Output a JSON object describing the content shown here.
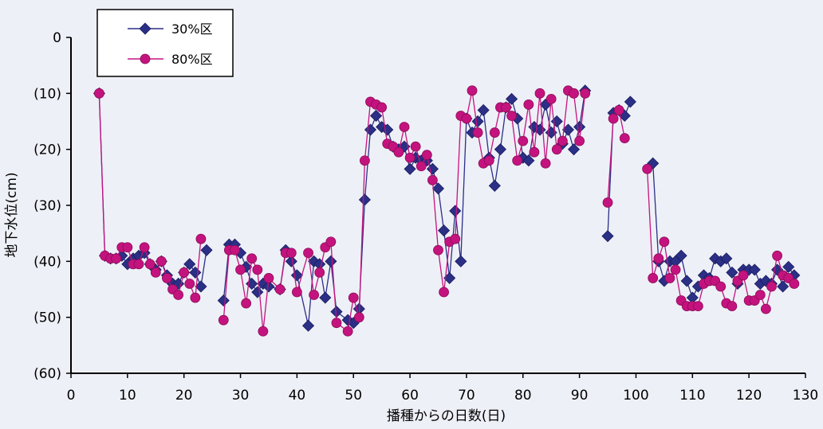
{
  "chart_data": {
    "type": "line",
    "title": "",
    "xlabel": "播種からの日数(日)",
    "ylabel": "地下水位(cm)",
    "xlim": [
      0,
      130
    ],
    "ylim": [
      -60,
      0
    ],
    "x_ticks": [
      0,
      10,
      20,
      30,
      40,
      50,
      60,
      70,
      80,
      90,
      100,
      110,
      120,
      130
    ],
    "y_ticks": [
      0,
      -10,
      -20,
      -30,
      -40,
      -50,
      -60
    ],
    "x_tick_labels": [
      "0",
      "10",
      "20",
      "30",
      "40",
      "50",
      "60",
      "70",
      "80",
      "90",
      "100",
      "110",
      "120",
      "130"
    ],
    "y_tick_labels": [
      "0",
      "(10)",
      "(20)",
      "(30)",
      "(40)",
      "(50)",
      "(60)"
    ],
    "grid": false,
    "legend_position": "top-left",
    "series": [
      {
        "name": "30%区",
        "color": "#2b2f86",
        "marker": "diamond",
        "points": [
          [
            5,
            -10
          ],
          [
            6,
            -39
          ],
          [
            7,
            -39.5
          ],
          [
            8,
            -39.5
          ],
          [
            9,
            -39
          ],
          [
            10,
            -40.5
          ],
          [
            11,
            -39.5
          ],
          [
            12,
            -39
          ],
          [
            13,
            -38.5
          ],
          [
            14,
            -40.5
          ],
          [
            15,
            -41.5
          ],
          [
            16,
            -40
          ],
          [
            17,
            -42.5
          ],
          [
            18,
            -44
          ],
          [
            19,
            -44
          ],
          [
            20,
            -42
          ],
          [
            21,
            -40.5
          ],
          [
            22,
            -42
          ],
          [
            23,
            -44.5
          ],
          [
            24,
            -38
          ],
          [
            27,
            -47
          ],
          [
            28,
            -37
          ],
          [
            29,
            -37
          ],
          [
            30,
            -38.5
          ],
          [
            31,
            -41
          ],
          [
            32,
            -44
          ],
          [
            33,
            -45.5
          ],
          [
            34,
            -44
          ],
          [
            35,
            -44.5
          ],
          [
            37,
            -45
          ],
          [
            38,
            -38
          ],
          [
            39,
            -40
          ],
          [
            40,
            -42.5
          ],
          [
            42,
            -51.5
          ],
          [
            43,
            -40
          ],
          [
            44,
            -40.5
          ],
          [
            45,
            -46.5
          ],
          [
            46,
            -40
          ],
          [
            47,
            -49
          ],
          [
            49,
            -50.5
          ],
          [
            50,
            -51
          ],
          [
            51,
            -48.5
          ],
          [
            52,
            -29
          ],
          [
            53,
            -16.5
          ],
          [
            54,
            -14
          ],
          [
            55,
            -16
          ],
          [
            56,
            -16.5
          ],
          [
            57,
            -19.5
          ],
          [
            58,
            -20
          ],
          [
            59,
            -19.5
          ],
          [
            60,
            -23.5
          ],
          [
            61,
            -21.5
          ],
          [
            62,
            -22
          ],
          [
            63,
            -22
          ],
          [
            64,
            -23.5
          ],
          [
            65,
            -27
          ],
          [
            66,
            -34.5
          ],
          [
            67,
            -43
          ],
          [
            68,
            -31
          ],
          [
            69,
            -40
          ],
          [
            70,
            -14.5
          ],
          [
            71,
            -17
          ],
          [
            72,
            -15
          ],
          [
            73,
            -13
          ],
          [
            74,
            -21.5
          ],
          [
            75,
            -26.5
          ],
          [
            76,
            -20
          ],
          [
            77,
            -12.5
          ],
          [
            78,
            -11
          ],
          [
            79,
            -14.5
          ],
          [
            80,
            -21.5
          ],
          [
            81,
            -22
          ],
          [
            82,
            -16
          ],
          [
            83,
            -16.5
          ],
          [
            84,
            -12
          ],
          [
            85,
            -17
          ],
          [
            86,
            -15
          ],
          [
            87,
            -19
          ],
          [
            88,
            -16.5
          ],
          [
            89,
            -20
          ],
          [
            90,
            -16
          ],
          [
            91,
            -9.5
          ],
          [
            95,
            -35.5
          ],
          [
            96,
            -13.5
          ],
          [
            97,
            -13
          ],
          [
            98,
            -14
          ],
          [
            99,
            -11.5
          ],
          [
            103,
            -22.5
          ],
          [
            104,
            -40
          ],
          [
            105,
            -43.5
          ],
          [
            106,
            -40
          ],
          [
            107,
            -40
          ],
          [
            108,
            -39
          ],
          [
            109,
            -43.5
          ],
          [
            110,
            -46.5
          ],
          [
            111,
            -44.5
          ],
          [
            112,
            -42.5
          ],
          [
            113,
            -43
          ],
          [
            114,
            -39.5
          ],
          [
            115,
            -40
          ],
          [
            116,
            -39.5
          ],
          [
            117,
            -42
          ],
          [
            118,
            -44
          ],
          [
            119,
            -41.5
          ],
          [
            120,
            -41.5
          ],
          [
            121,
            -41.5
          ],
          [
            122,
            -44
          ],
          [
            123,
            -43.5
          ],
          [
            124,
            -44
          ],
          [
            125,
            -41.5
          ],
          [
            126,
            -44.5
          ],
          [
            127,
            -41
          ],
          [
            128,
            -42.5
          ]
        ]
      },
      {
        "name": "80%区",
        "color": "#c4137e",
        "marker": "circle",
        "points": [
          [
            5,
            -10
          ],
          [
            6,
            -39
          ],
          [
            7,
            -39.5
          ],
          [
            8,
            -39.5
          ],
          [
            9,
            -37.5
          ],
          [
            10,
            -37.5
          ],
          [
            11,
            -40.5
          ],
          [
            12,
            -40.5
          ],
          [
            13,
            -37.5
          ],
          [
            14,
            -40.5
          ],
          [
            15,
            -42
          ],
          [
            16,
            -40
          ],
          [
            17,
            -43
          ],
          [
            18,
            -45
          ],
          [
            19,
            -46
          ],
          [
            20,
            -42
          ],
          [
            21,
            -44
          ],
          [
            22,
            -46.5
          ],
          [
            23,
            -36
          ],
          [
            27,
            -50.5
          ],
          [
            28,
            -38
          ],
          [
            29,
            -38
          ],
          [
            30,
            -41.5
          ],
          [
            31,
            -47.5
          ],
          [
            32,
            -39.5
          ],
          [
            33,
            -41.5
          ],
          [
            34,
            -52.5
          ],
          [
            35,
            -43
          ],
          [
            37,
            -45
          ],
          [
            38,
            -38.5
          ],
          [
            39,
            -38.5
          ],
          [
            40,
            -45.5
          ],
          [
            42,
            -38.5
          ],
          [
            43,
            -46
          ],
          [
            44,
            -42
          ],
          [
            45,
            -37.5
          ],
          [
            46,
            -36.5
          ],
          [
            47,
            -51
          ],
          [
            49,
            -52.5
          ],
          [
            50,
            -46.5
          ],
          [
            51,
            -50
          ],
          [
            52,
            -22
          ],
          [
            53,
            -11.5
          ],
          [
            54,
            -12
          ],
          [
            55,
            -12.5
          ],
          [
            56,
            -19
          ],
          [
            57,
            -19.5
          ],
          [
            58,
            -20.5
          ],
          [
            59,
            -16
          ],
          [
            60,
            -21.5
          ],
          [
            61,
            -19.5
          ],
          [
            62,
            -23
          ],
          [
            63,
            -21
          ],
          [
            64,
            -25.5
          ],
          [
            65,
            -38
          ],
          [
            66,
            -45.5
          ],
          [
            67,
            -36.5
          ],
          [
            68,
            -36
          ],
          [
            69,
            -14
          ],
          [
            70,
            -14.5
          ],
          [
            71,
            -9.5
          ],
          [
            72,
            -17
          ],
          [
            73,
            -22.5
          ],
          [
            74,
            -22
          ],
          [
            75,
            -17
          ],
          [
            76,
            -12.5
          ],
          [
            77,
            -12.5
          ],
          [
            78,
            -14
          ],
          [
            79,
            -22
          ],
          [
            80,
            -18.5
          ],
          [
            81,
            -12
          ],
          [
            82,
            -20.5
          ],
          [
            83,
            -10
          ],
          [
            84,
            -22.5
          ],
          [
            85,
            -11
          ],
          [
            86,
            -20
          ],
          [
            87,
            -18.5
          ],
          [
            88,
            -9.5
          ],
          [
            89,
            -10
          ],
          [
            90,
            -18.5
          ],
          [
            91,
            -10
          ],
          [
            95,
            -29.5
          ],
          [
            96,
            -14.5
          ],
          [
            97,
            -13
          ],
          [
            98,
            -18
          ],
          [
            102,
            -23.5
          ],
          [
            103,
            -43
          ],
          [
            104,
            -39.5
          ],
          [
            105,
            -36.5
          ],
          [
            106,
            -43
          ],
          [
            107,
            -41.5
          ],
          [
            108,
            -47
          ],
          [
            109,
            -48
          ],
          [
            110,
            -48
          ],
          [
            111,
            -48
          ],
          [
            112,
            -44
          ],
          [
            113,
            -43.5
          ],
          [
            114,
            -43.5
          ],
          [
            115,
            -44.5
          ],
          [
            116,
            -47.5
          ],
          [
            117,
            -48
          ],
          [
            118,
            -43.5
          ],
          [
            119,
            -42.5
          ],
          [
            120,
            -47
          ],
          [
            121,
            -47
          ],
          [
            122,
            -46
          ],
          [
            123,
            -48.5
          ],
          [
            124,
            -44.5
          ],
          [
            125,
            -39
          ],
          [
            126,
            -42.5
          ],
          [
            127,
            -43
          ],
          [
            128,
            -44
          ]
        ]
      }
    ]
  }
}
